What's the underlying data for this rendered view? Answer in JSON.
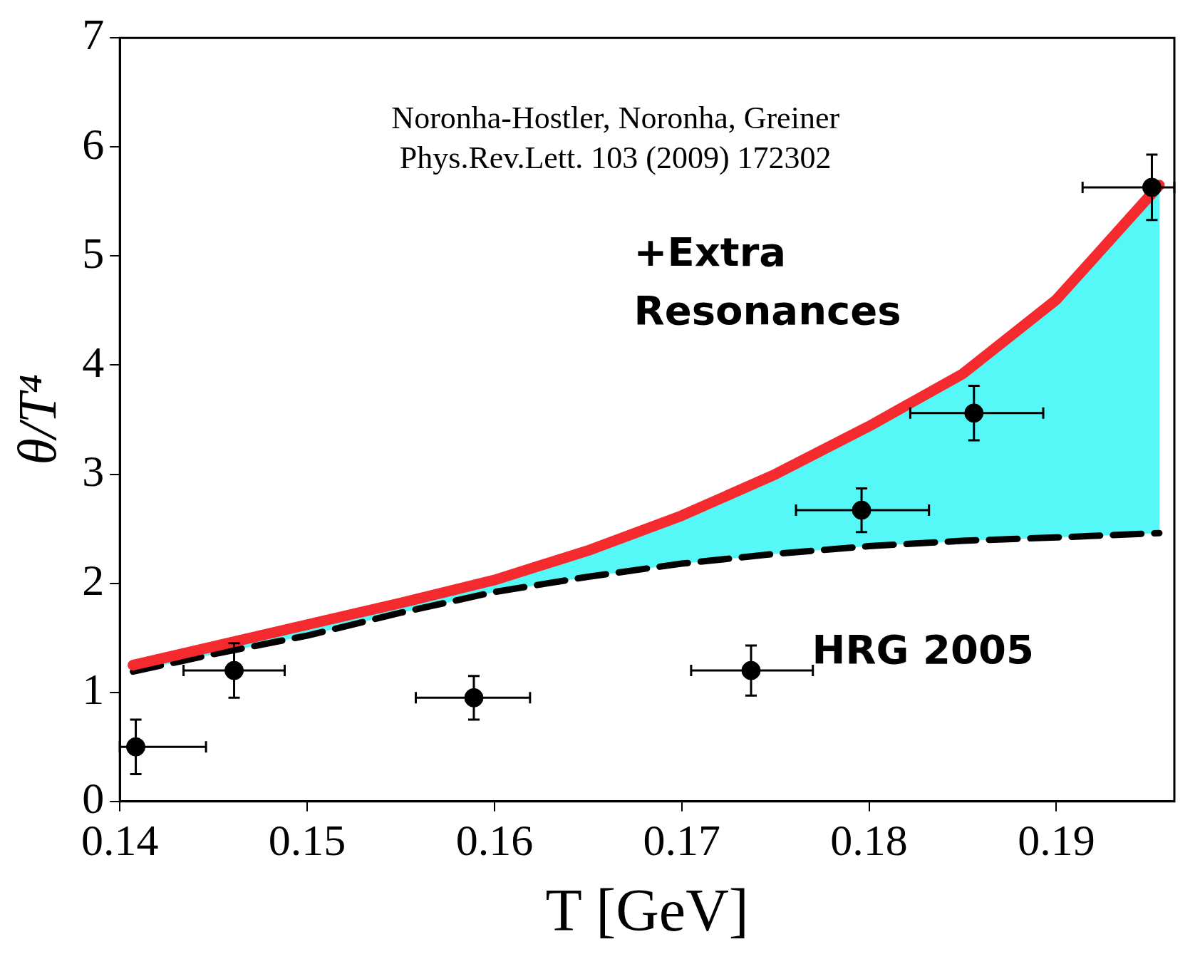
{
  "chart_data": {
    "type": "line",
    "xlabel": "T [GeV]",
    "ylabel": "θ/T⁴",
    "xlim": [
      0.14,
      0.1963
    ],
    "xticks": [
      0.14,
      0.15,
      0.16,
      0.17,
      0.18,
      0.19
    ],
    "ylim": [
      0,
      7
    ],
    "yticks": [
      0,
      1,
      2,
      3,
      4,
      5,
      6,
      7
    ],
    "grid": false,
    "legend": false,
    "x": [
      0.1407,
      0.145,
      0.15,
      0.155,
      0.16,
      0.165,
      0.17,
      0.175,
      0.18,
      0.185,
      0.19,
      0.1955
    ],
    "series": [
      {
        "type": "area",
        "color": "#55f7f7",
        "values": [
          1.25,
          1.42,
          1.62,
          1.82,
          2.03,
          2.3,
          2.62,
          3.0,
          3.44,
          3.92,
          4.6,
          5.65
        ]
      },
      {
        "name": "+Extra Resonances",
        "color": "#f42a2e",
        "values": [
          1.25,
          1.42,
          1.62,
          1.82,
          2.03,
          2.3,
          2.62,
          3.0,
          3.44,
          3.92,
          4.6,
          5.65
        ]
      },
      {
        "name": "HRG 2005",
        "color": "#000000",
        "line_style": "dashed",
        "values": [
          1.19,
          1.35,
          1.52,
          1.73,
          1.92,
          2.06,
          2.18,
          2.27,
          2.34,
          2.39,
          2.42,
          2.46
        ]
      },
      {
        "type": "scatter",
        "color": "#000000",
        "marker": "circle",
        "x": [
          0.14085,
          0.1461,
          0.1589,
          0.1737,
          0.1796,
          0.1856,
          0.1951
        ],
        "values": [
          0.5,
          1.2,
          0.95,
          1.2,
          2.67,
          3.56,
          5.63
        ],
        "errors": [
          0.25,
          0.25,
          0.2,
          0.23,
          0.2,
          0.25,
          0.3
        ],
        "xerrors": [
          [
            0.14,
            0.1446
          ],
          [
            0.1434,
            0.1488
          ],
          [
            0.1558,
            0.1619
          ],
          [
            0.1705,
            0.177
          ],
          [
            0.1761,
            0.1832
          ],
          [
            0.1822,
            0.1893
          ],
          [
            0.1914,
            0.1963
          ]
        ]
      }
    ],
    "annotations": [
      "Noronha-Hostler, Noronha, Greiner",
      "Phys.Rev.Lett. 103 (2009) 172302"
    ]
  }
}
